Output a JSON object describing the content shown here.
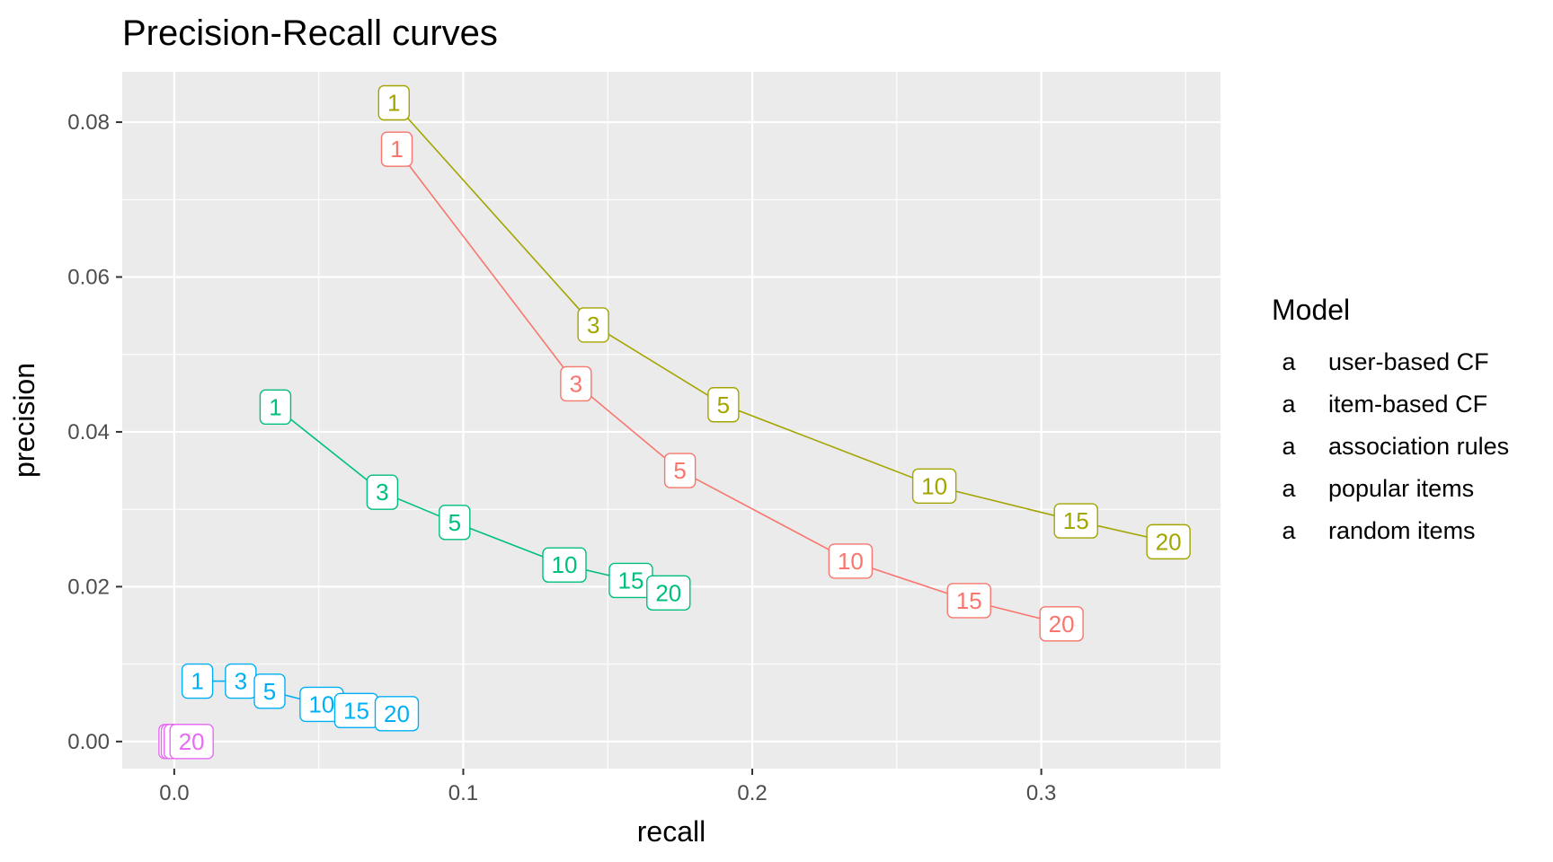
{
  "chart_data": {
    "type": "line",
    "title": "Precision-Recall curves",
    "xlabel": "recall",
    "ylabel": "precision",
    "xlim": [
      -0.018,
      0.362
    ],
    "ylim": [
      -0.0035,
      0.0865
    ],
    "x_ticks": [
      0.0,
      0.1,
      0.2,
      0.3
    ],
    "x_tick_labels": [
      "0.0",
      "0.1",
      "0.2",
      "0.3"
    ],
    "y_ticks": [
      0.0,
      0.02,
      0.04,
      0.06,
      0.08
    ],
    "y_tick_labels": [
      "0.00",
      "0.02",
      "0.04",
      "0.06",
      "0.08"
    ],
    "grid": true,
    "legend": {
      "title": "Model",
      "position": "right",
      "key_glyph": "a"
    },
    "series": [
      {
        "name": "user-based CF",
        "color": "#F8766D",
        "points": [
          {
            "label": "1",
            "x": 0.077,
            "y": 0.0765
          },
          {
            "label": "3",
            "x": 0.139,
            "y": 0.0462
          },
          {
            "label": "5",
            "x": 0.175,
            "y": 0.035
          },
          {
            "label": "10",
            "x": 0.234,
            "y": 0.0233
          },
          {
            "label": "15",
            "x": 0.275,
            "y": 0.0182
          },
          {
            "label": "20",
            "x": 0.307,
            "y": 0.0152
          }
        ]
      },
      {
        "name": "item-based CF",
        "color": "#A3A500",
        "points": [
          {
            "label": "1",
            "x": 0.076,
            "y": 0.0825
          },
          {
            "label": "3",
            "x": 0.145,
            "y": 0.0538
          },
          {
            "label": "5",
            "x": 0.19,
            "y": 0.0435
          },
          {
            "label": "10",
            "x": 0.263,
            "y": 0.033
          },
          {
            "label": "15",
            "x": 0.312,
            "y": 0.0285
          },
          {
            "label": "20",
            "x": 0.344,
            "y": 0.0258
          }
        ]
      },
      {
        "name": "association rules",
        "color": "#00BF7D",
        "points": [
          {
            "label": "1",
            "x": 0.035,
            "y": 0.0432
          },
          {
            "label": "3",
            "x": 0.072,
            "y": 0.0322
          },
          {
            "label": "5",
            "x": 0.097,
            "y": 0.0283
          },
          {
            "label": "10",
            "x": 0.135,
            "y": 0.0228
          },
          {
            "label": "15",
            "x": 0.158,
            "y": 0.0208
          },
          {
            "label": "20",
            "x": 0.171,
            "y": 0.0192
          }
        ]
      },
      {
        "name": "popular items",
        "color": "#00B0F6",
        "points": [
          {
            "label": "1",
            "x": 0.008,
            "y": 0.0078
          },
          {
            "label": "3",
            "x": 0.023,
            "y": 0.0078
          },
          {
            "label": "5",
            "x": 0.033,
            "y": 0.0065
          },
          {
            "label": "10",
            "x": 0.051,
            "y": 0.0048
          },
          {
            "label": "15",
            "x": 0.063,
            "y": 0.004
          },
          {
            "label": "20",
            "x": 0.077,
            "y": 0.0036
          }
        ]
      },
      {
        "name": "random items",
        "color": "#E76BF3",
        "points": [
          {
            "label": "1",
            "x": 0.0,
            "y": 0.0
          },
          {
            "label": "3",
            "x": 0.001,
            "y": 0.0
          },
          {
            "label": "5",
            "x": 0.002,
            "y": 0.0
          },
          {
            "label": "10",
            "x": 0.003,
            "y": 0.0
          },
          {
            "label": "15",
            "x": 0.004,
            "y": 0.0
          },
          {
            "label": "20",
            "x": 0.006,
            "y": 0.0
          }
        ]
      }
    ]
  }
}
